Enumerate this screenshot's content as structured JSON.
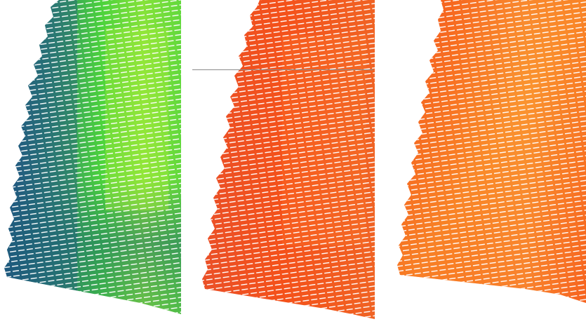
{
  "panels": [
    {
      "name": "panel-green-blue",
      "colors": {
        "edge": "#1f4f86",
        "mid": "#2f8a6a",
        "main": "#4bd23c",
        "bright": "#b8f03a",
        "dark": "#1b6a6e"
      }
    },
    {
      "name": "panel-orange-red",
      "colors": {
        "edge": "#e8502a",
        "mid": "#f06424",
        "main": "#f4511a",
        "bright": "#ff9c2a",
        "dark": "#e2431a"
      }
    },
    {
      "name": "panel-orange-yellow",
      "colors": {
        "edge": "#f24d1a",
        "mid": "#f7722a",
        "main": "#f65a1c",
        "bright": "#ffd23a",
        "dark": "#ee3f14"
      }
    }
  ],
  "stripe_color": "#ffffff",
  "guide_line_color": "#8a8a8a"
}
